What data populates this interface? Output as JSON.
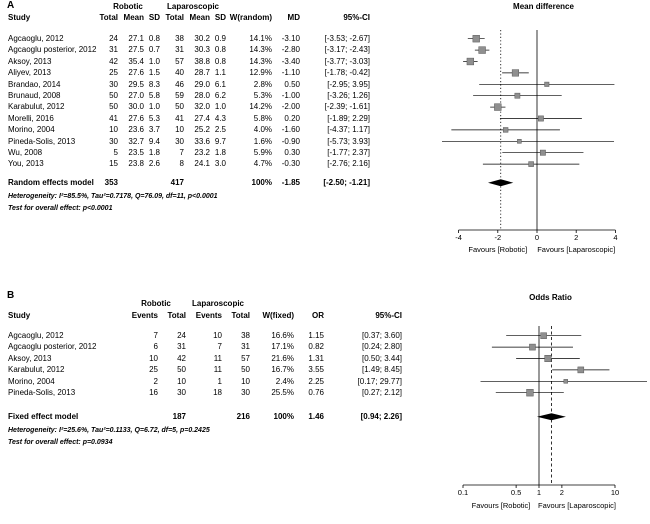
{
  "chart_data": [
    {
      "panel": "A",
      "type": "forest",
      "title": "Mean difference",
      "scale": "linear",
      "null_value": 0,
      "xticks": [
        -4,
        -2,
        0,
        2,
        4
      ],
      "favours_left": "Favours [Robotic]",
      "favours_right": "Favours [Laparoscopic]",
      "header": {
        "group1": "Robotic",
        "group2": "Laparoscopic",
        "cols": [
          "Study",
          "Total",
          "Mean",
          "SD",
          "Total",
          "Mean",
          "SD",
          "W(random)",
          "MD",
          "95%-CI"
        ]
      },
      "studies": [
        {
          "name": "Agcaoglu, 2012",
          "cells": [
            "24",
            "27.1",
            "0.8",
            "38",
            "30.2",
            "0.9",
            "14.1%",
            "-3.10",
            "[-3.53; -2.67]"
          ],
          "est": -3.1,
          "lo": -3.53,
          "hi": -2.67,
          "w": 14.1
        },
        {
          "name": "Agcaoglu posterior, 2012",
          "cells": [
            "31",
            "27.5",
            "0.7",
            "31",
            "30.3",
            "0.8",
            "14.3%",
            "-2.80",
            "[-3.17; -2.43]"
          ],
          "est": -2.8,
          "lo": -3.17,
          "hi": -2.43,
          "w": 14.3
        },
        {
          "name": "Aksoy, 2013",
          "cells": [
            "42",
            "35.4",
            "1.0",
            "57",
            "38.8",
            "0.8",
            "14.3%",
            "-3.40",
            "[-3.77; -3.03]"
          ],
          "est": -3.4,
          "lo": -3.77,
          "hi": -3.03,
          "w": 14.3
        },
        {
          "name": "Aliyev, 2013",
          "cells": [
            "25",
            "27.6",
            "1.5",
            "40",
            "28.7",
            "1.1",
            "12.9%",
            "-1.10",
            "[-1.78; -0.42]"
          ],
          "est": -1.1,
          "lo": -1.78,
          "hi": -0.42,
          "w": 12.9
        },
        {
          "name": "Brandao, 2014",
          "cells": [
            "30",
            "29.5",
            "8.3",
            "46",
            "29.0",
            "6.1",
            "2.8%",
            "0.50",
            "[-2.95; 3.95]"
          ],
          "est": 0.5,
          "lo": -2.95,
          "hi": 3.95,
          "w": 2.8
        },
        {
          "name": "Brunaud, 2008",
          "cells": [
            "50",
            "27.0",
            "5.8",
            "59",
            "28.0",
            "6.2",
            "5.3%",
            "-1.00",
            "[-3.26; 1.26]"
          ],
          "est": -1.0,
          "lo": -3.26,
          "hi": 1.26,
          "w": 5.3
        },
        {
          "name": "Karabulut, 2012",
          "cells": [
            "50",
            "30.0",
            "1.0",
            "50",
            "32.0",
            "1.0",
            "14.2%",
            "-2.00",
            "[-2.39; -1.61]"
          ],
          "est": -2.0,
          "lo": -2.39,
          "hi": -1.61,
          "w": 14.2
        },
        {
          "name": "Morelli, 2016",
          "cells": [
            "41",
            "27.6",
            "5.3",
            "41",
            "27.4",
            "4.3",
            "5.8%",
            "0.20",
            "[-1.89; 2.29]"
          ],
          "est": 0.2,
          "lo": -1.89,
          "hi": 2.29,
          "w": 5.8
        },
        {
          "name": "Morino, 2004",
          "cells": [
            "10",
            "23.6",
            "3.7",
            "10",
            "25.2",
            "2.5",
            "4.0%",
            "-1.60",
            "[-4.37; 1.17]"
          ],
          "est": -1.6,
          "lo": -4.37,
          "hi": 1.17,
          "w": 4.0
        },
        {
          "name": "Pineda-Solis, 2013",
          "cells": [
            "30",
            "32.7",
            "9.4",
            "30",
            "33.6",
            "9.7",
            "1.6%",
            "-0.90",
            "[-5.73; 3.93]"
          ],
          "est": -0.9,
          "lo": -5.73,
          "hi": 3.93,
          "w": 1.6
        },
        {
          "name": "Wu, 2008",
          "cells": [
            "5",
            "23.5",
            "1.8",
            "7",
            "23.2",
            "1.8",
            "5.9%",
            "0.30",
            "[-1.77; 2.37]"
          ],
          "est": 0.3,
          "lo": -1.77,
          "hi": 2.37,
          "w": 5.9
        },
        {
          "name": "You, 2013",
          "cells": [
            "15",
            "23.8",
            "2.6",
            "8",
            "24.1",
            "3.0",
            "4.7%",
            "-0.30",
            "[-2.76; 2.16]"
          ],
          "est": -0.3,
          "lo": -2.76,
          "hi": 2.16,
          "w": 4.7
        }
      ],
      "summary": {
        "name": "Random effects model",
        "cells": [
          "353",
          "",
          "",
          "417",
          "",
          "",
          "100%",
          "-1.85",
          "[-2.50; -1.21]"
        ],
        "est": -1.85,
        "lo": -2.5,
        "hi": -1.21
      },
      "heterogeneity": "Heterogeneity: I²=85.5%, Tau²=0.7178, Q=76.09, df=11, p<0.0001",
      "test": "Test for overall effect:  p<0.0001"
    },
    {
      "panel": "B",
      "type": "forest",
      "title": "Odds Ratio",
      "scale": "log",
      "null_value": 1,
      "xticks": [
        0.1,
        0.5,
        1,
        2,
        10
      ],
      "favours_left": "Favours [Robotic]",
      "favours_right": "Favours [Laparoscopic]",
      "header": {
        "group1": "Robotic",
        "group2": "Laparoscopic",
        "cols": [
          "Study",
          "Events",
          "Total",
          "Events",
          "Total",
          "W(fixed)",
          "OR",
          "95%-CI"
        ]
      },
      "studies": [
        {
          "name": "Agcaoglu, 2012",
          "cells": [
            "7",
            "24",
            "10",
            "38",
            "16.6%",
            "1.15",
            "[0.37; 3.60]"
          ],
          "est": 1.15,
          "lo": 0.37,
          "hi": 3.6,
          "w": 16.6
        },
        {
          "name": "Agcaoglu posterior, 2012",
          "cells": [
            "6",
            "31",
            "7",
            "31",
            "17.1%",
            "0.82",
            "[0.24; 2.80]"
          ],
          "est": 0.82,
          "lo": 0.24,
          "hi": 2.8,
          "w": 17.1
        },
        {
          "name": "Aksoy, 2013",
          "cells": [
            "10",
            "42",
            "11",
            "57",
            "21.6%",
            "1.31",
            "[0.50; 3.44]"
          ],
          "est": 1.31,
          "lo": 0.5,
          "hi": 3.44,
          "w": 21.6
        },
        {
          "name": "Karabulut, 2012",
          "cells": [
            "25",
            "50",
            "11",
            "50",
            "16.7%",
            "3.55",
            "[1.49; 8.45]"
          ],
          "est": 3.55,
          "lo": 1.49,
          "hi": 8.45,
          "w": 16.7
        },
        {
          "name": "Morino, 2004",
          "cells": [
            "2",
            "10",
            "1",
            "10",
            "2.4%",
            "2.25",
            "[0.17; 29.77]"
          ],
          "est": 2.25,
          "lo": 0.17,
          "hi": 29.77,
          "w": 2.4
        },
        {
          "name": "Pineda-Solis, 2013",
          "cells": [
            "16",
            "30",
            "18",
            "30",
            "25.5%",
            "0.76",
            "[0.27; 2.12]"
          ],
          "est": 0.76,
          "lo": 0.27,
          "hi": 2.12,
          "w": 25.5
        }
      ],
      "summary": {
        "name": "Fixed effect model",
        "cells": [
          "",
          "187",
          "",
          "216",
          "100%",
          "1.46",
          "[0.94; 2.26]"
        ],
        "est": 1.46,
        "lo": 0.94,
        "hi": 2.26
      },
      "heterogeneity": "Heterogeneity: I²=25.6%, Tau²=0.1133, Q=6.72, df=5, p=0.2425",
      "test": "Test for overall effect:  p=0.0934"
    }
  ]
}
